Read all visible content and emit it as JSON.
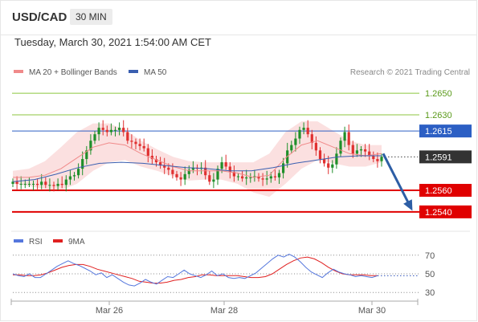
{
  "header": {
    "symbol": "USD/CAD",
    "timeframe": "30 MIN",
    "timestamp": "Tuesday, March 30, 2021 1:54:00 AM CET"
  },
  "price_legend": {
    "ma20_label": "MA 20 + Bollinger Bands",
    "ma50_label": "MA 50",
    "credit": "Research © 2021 Trading Central"
  },
  "rsi_legend": {
    "rsi_label": "RSI",
    "ma9_label": "9MA"
  },
  "colors": {
    "bullish_candle": "#1f8f2a",
    "bearish_candle": "#e03030",
    "ma20": "#f08a8a",
    "ma50": "#3a5fb0",
    "bands_fill": "#fad5d5",
    "resistance_green": "#8cc63f",
    "pivot_blue": "#2c5fc4",
    "support_red": "#e00000",
    "current_price_box": "#333333",
    "arrow": "#2d5ea5",
    "rsi_line": "#5577dd",
    "rsi_ma": "#e02020"
  },
  "chart_data": [
    {
      "type": "candlestick",
      "title": "USD/CAD 30 MIN",
      "x_ticks": [
        "Mar 26",
        "Mar 28",
        "Mar 30"
      ],
      "ylim": [
        1.2525,
        1.2665
      ],
      "current_price": 1.2591,
      "levels": [
        {
          "value": 1.265,
          "label": "1.2650",
          "kind": "resistance"
        },
        {
          "value": 1.263,
          "label": "1.2630",
          "kind": "resistance"
        },
        {
          "value": 1.2615,
          "label": "1.2615",
          "kind": "pivot"
        },
        {
          "value": 1.2591,
          "label": "1.2591",
          "kind": "current"
        },
        {
          "value": 1.256,
          "label": "1.2560",
          "kind": "support"
        },
        {
          "value": 1.254,
          "label": "1.2540",
          "kind": "support"
        }
      ],
      "close_series": [
        1.2568,
        1.2566,
        1.2566,
        1.2566,
        1.2566,
        1.2566,
        1.2565,
        1.2568,
        1.2565,
        1.2565,
        1.2564,
        1.2566,
        1.2565,
        1.257,
        1.2573,
        1.2574,
        1.258,
        1.2589,
        1.2597,
        1.2606,
        1.2612,
        1.2618,
        1.2616,
        1.2614,
        1.2616,
        1.2616,
        1.2618,
        1.2614,
        1.2606,
        1.2605,
        1.2603,
        1.2601,
        1.2599,
        1.2592,
        1.2589,
        1.2586,
        1.2583,
        1.2581,
        1.2579,
        1.2575,
        1.2572,
        1.257,
        1.2575,
        1.2579,
        1.2581,
        1.258,
        1.2581,
        1.2574,
        1.2568,
        1.257,
        1.258,
        1.2586,
        1.2582,
        1.2577,
        1.2573,
        1.2573,
        1.2571,
        1.2572,
        1.2572,
        1.2573,
        1.2571,
        1.257,
        1.2571,
        1.2573,
        1.2572,
        1.2576,
        1.2585,
        1.2597,
        1.2602,
        1.2608,
        1.2616,
        1.2618,
        1.2612,
        1.2604,
        1.2597,
        1.2589,
        1.2585,
        1.2581,
        1.2584,
        1.2594,
        1.2606,
        1.2614,
        1.2602,
        1.2594,
        1.2597,
        1.2598,
        1.2596,
        1.2592,
        1.2589,
        1.2587,
        1.2591
      ],
      "ma20": [
        1.2572,
        1.2572,
        1.2574,
        1.258,
        1.259,
        1.26,
        1.2604,
        1.2602,
        1.2594,
        1.2588,
        1.2582,
        1.2578,
        1.2578,
        1.2578,
        1.2576,
        1.2572,
        1.2574,
        1.259,
        1.2602,
        1.2606,
        1.26,
        1.2594,
        1.2592,
        1.2594
      ],
      "ma50": [
        1.2568,
        1.257,
        1.2575,
        1.2581,
        1.2585,
        1.2586,
        1.2585,
        1.2583,
        1.2581,
        1.258,
        1.2578,
        1.2578,
        1.2581,
        1.2585,
        1.2588,
        1.2591,
        1.2592,
        1.2592
      ],
      "series": [
        {
          "name": "MA 20 + Bollinger Bands"
        },
        {
          "name": "MA 50"
        }
      ]
    },
    {
      "type": "line",
      "title": "RSI",
      "ylim": [
        25,
        75
      ],
      "yticks": [
        70,
        50,
        30
      ],
      "rsi": [
        50,
        48,
        47,
        50,
        46,
        46,
        50,
        54,
        58,
        61,
        64,
        61,
        59,
        56,
        53,
        49,
        51,
        46,
        49,
        45,
        41,
        38,
        37,
        40,
        44,
        41,
        39,
        43,
        47,
        46,
        50,
        54,
        50,
        48,
        46,
        49,
        53,
        48,
        50,
        46,
        45,
        46,
        45,
        48,
        51,
        56,
        61,
        66,
        70,
        68,
        71,
        68,
        63,
        57,
        52,
        49,
        46,
        51,
        55,
        52,
        50,
        49,
        47,
        48,
        47,
        46,
        48
      ],
      "ma9": [
        49,
        49,
        48,
        48,
        49,
        51,
        54,
        57,
        59,
        60,
        60,
        58,
        55,
        53,
        51,
        49,
        47,
        45,
        42,
        41,
        40,
        40,
        41,
        43,
        44,
        46,
        47,
        49,
        49,
        48,
        48,
        48,
        48,
        47,
        46,
        46,
        47,
        50,
        55,
        60,
        64,
        67,
        68,
        66,
        62,
        57,
        53,
        50,
        49,
        49,
        49,
        48,
        48
      ]
    }
  ]
}
